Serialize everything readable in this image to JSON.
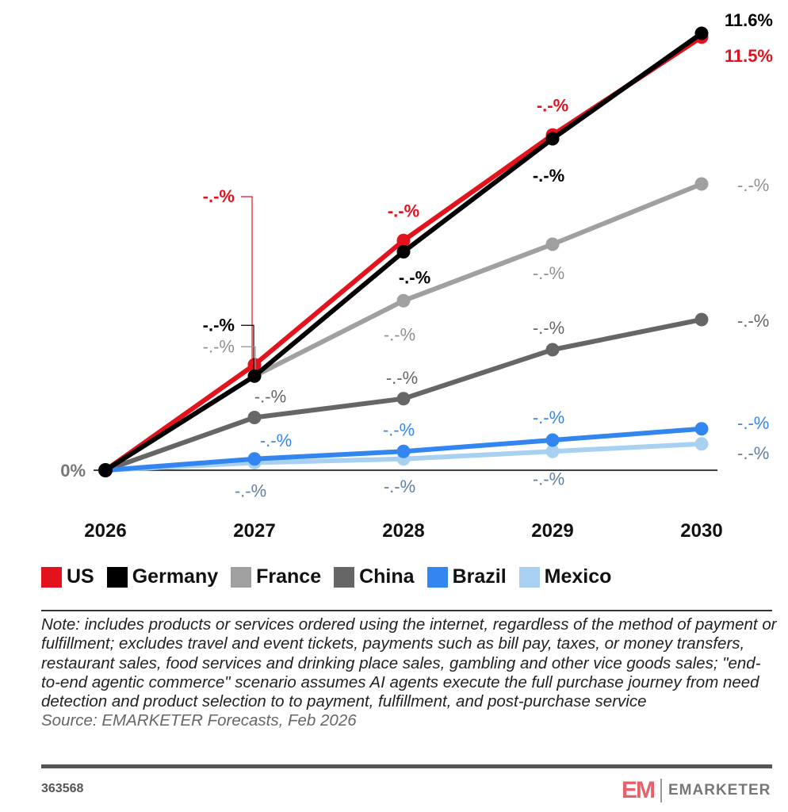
{
  "chart_data": {
    "type": "line",
    "x": [
      "2026",
      "2027",
      "2028",
      "2029",
      "2030"
    ],
    "ylim": [
      0,
      11.6
    ],
    "zero_label": "0%",
    "grid": false,
    "legend_position": "bottom-left",
    "series": [
      {
        "name": "US",
        "color": "#e4121d",
        "label_color": "#e4121d",
        "values": [
          0,
          2.8,
          6.1,
          8.9,
          11.5
        ],
        "labels": [
          "",
          "-.-%",
          "-.-%",
          "-.-%",
          "11.5%"
        ]
      },
      {
        "name": "Germany",
        "color": "#000000",
        "label_color": "#000000",
        "values": [
          0,
          2.5,
          5.8,
          8.8,
          11.6
        ],
        "labels": [
          "",
          "-.-%",
          "-.-%",
          "-.-%",
          "11.6%"
        ]
      },
      {
        "name": "France",
        "color": "#a0a0a0",
        "label_color": "#909090",
        "values": [
          0,
          2.5,
          4.5,
          6.0,
          7.6
        ],
        "labels": [
          "",
          "-.-%",
          "-.-%",
          "-.-%",
          "-.-%"
        ]
      },
      {
        "name": "China",
        "color": "#666666",
        "label_color": "#666666",
        "values": [
          0,
          1.4,
          1.9,
          3.2,
          4.0
        ],
        "labels": [
          "",
          "-.-%",
          "-.-%",
          "-.-%",
          "-.-%"
        ]
      },
      {
        "name": "Brazil",
        "color": "#3385f0",
        "label_color": "#3385f0",
        "values": [
          0,
          0.3,
          0.5,
          0.8,
          1.1
        ],
        "labels": [
          "",
          "-.-%",
          "-.-%",
          "-.-%",
          "-.-%"
        ]
      },
      {
        "name": "Mexico",
        "color": "#a8d0f0",
        "label_color": "#5f80a0",
        "values": [
          0,
          0.2,
          0.3,
          0.5,
          0.7
        ],
        "labels": [
          "",
          "-.-%",
          "-.-%",
          "-.-%",
          "-.-%"
        ]
      }
    ]
  },
  "note": "Note: includes products or services ordered using the internet, regardless of the method of payment or fulfillment; excludes travel and event tickets, payments such as bill pay, taxes, or money transfers, restaurant sales, food services and drinking place sales, gambling and other vice goods sales; \"end-to-end agentic commerce\" scenario assumes AI agents execute the full purchase journey from need detection and product selection to to payment, fulfillment, and post-purchase service",
  "source": "Source: EMARKETER Forecasts, Feb 2026",
  "chart_id": "363568",
  "brand": {
    "mark": "EM",
    "name": "EMARKETER"
  }
}
